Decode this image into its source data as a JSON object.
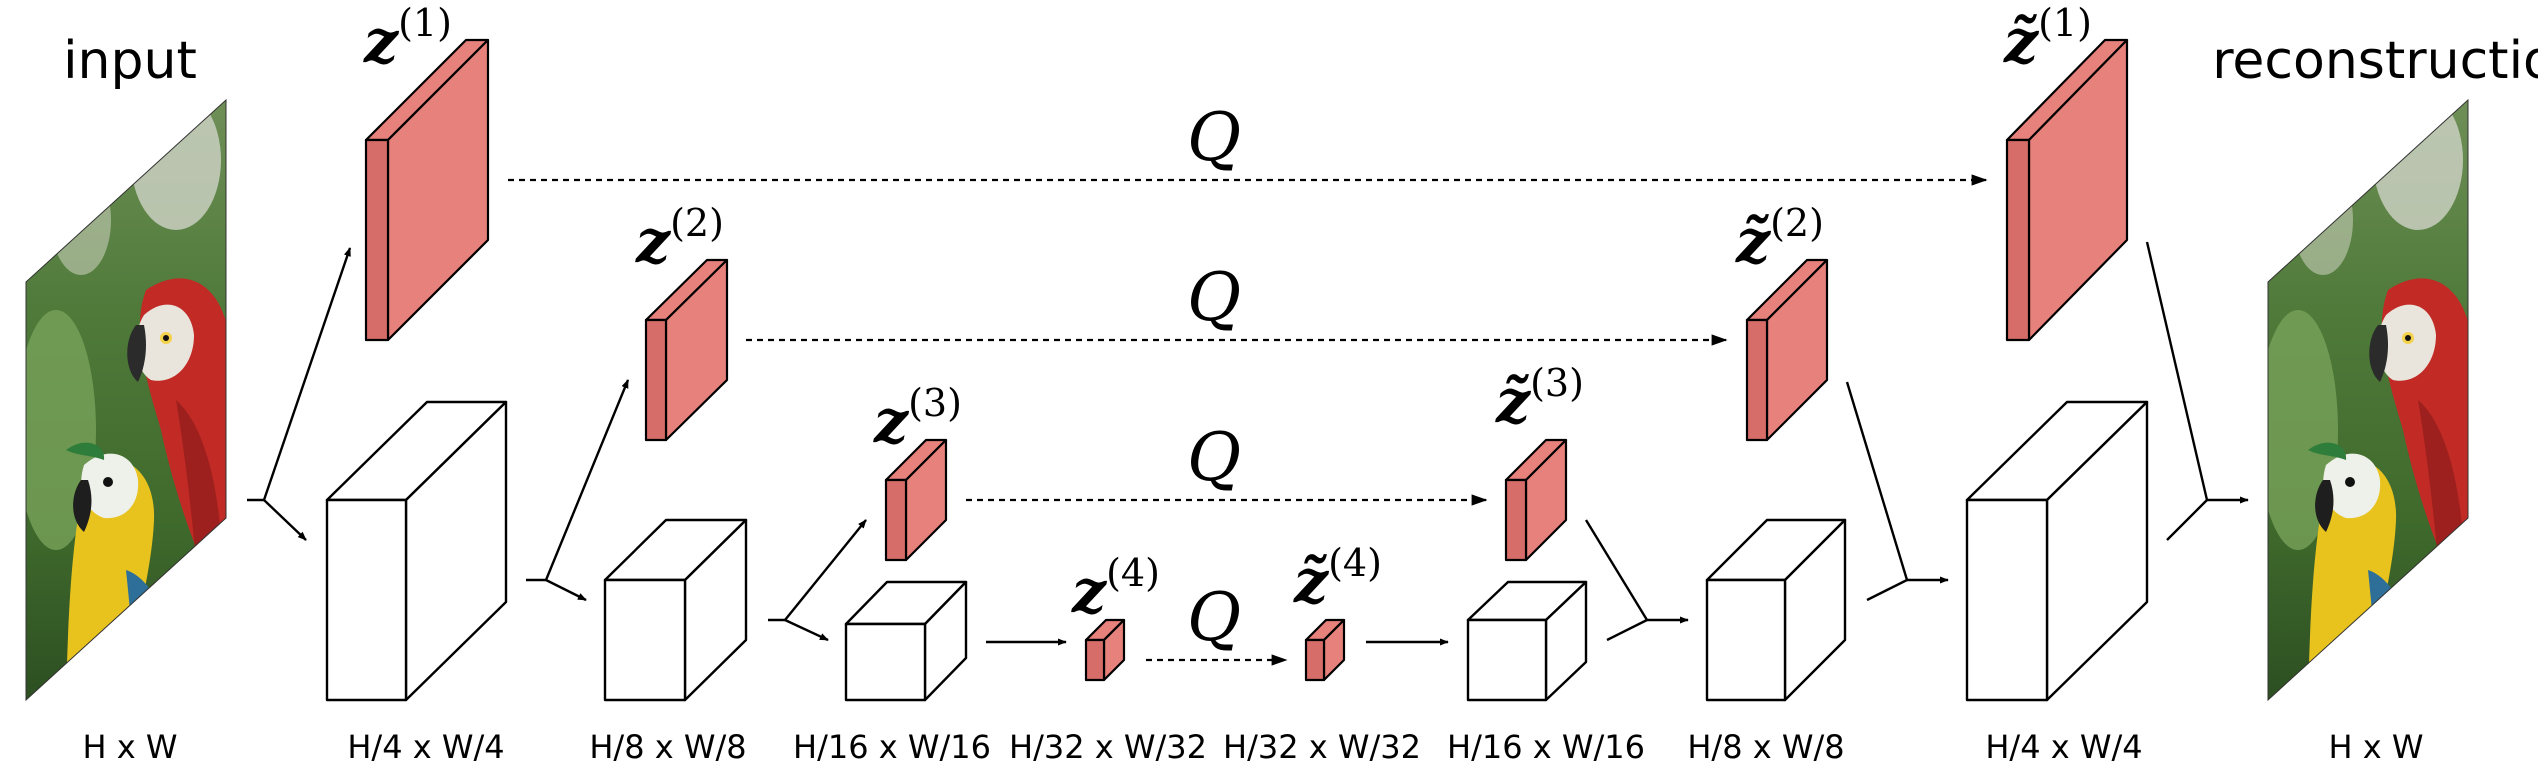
{
  "labels": {
    "input": "input",
    "reconstruction": "reconstruction",
    "q": "Q"
  },
  "latents": [
    {
      "name": "z",
      "index": "(1)"
    },
    {
      "name": "z",
      "index": "(2)"
    },
    {
      "name": "z",
      "index": "(3)"
    },
    {
      "name": "z",
      "index": "(4)"
    }
  ],
  "reconstructed_latents": [
    {
      "name": "z̃",
      "index": "(1)"
    },
    {
      "name": "z̃",
      "index": "(2)"
    },
    {
      "name": "z̃",
      "index": "(3)"
    },
    {
      "name": "z̃",
      "index": "(4)"
    }
  ],
  "resolutions": {
    "input": "H x W",
    "enc1": "H/4 x W/4",
    "enc2": "H/8 x W/8",
    "enc3": "H/16 x W/16",
    "enc4": "H/32 x W/32",
    "dec4": "H/32 x W/32",
    "dec3": "H/16 x W/16",
    "dec2": "H/8 x W/8",
    "dec1": "H/4 x W/4",
    "output": "H x W"
  },
  "colors": {
    "latent_fill": "#e6817b",
    "latent_side": "#d76d68",
    "line": "#000000"
  }
}
